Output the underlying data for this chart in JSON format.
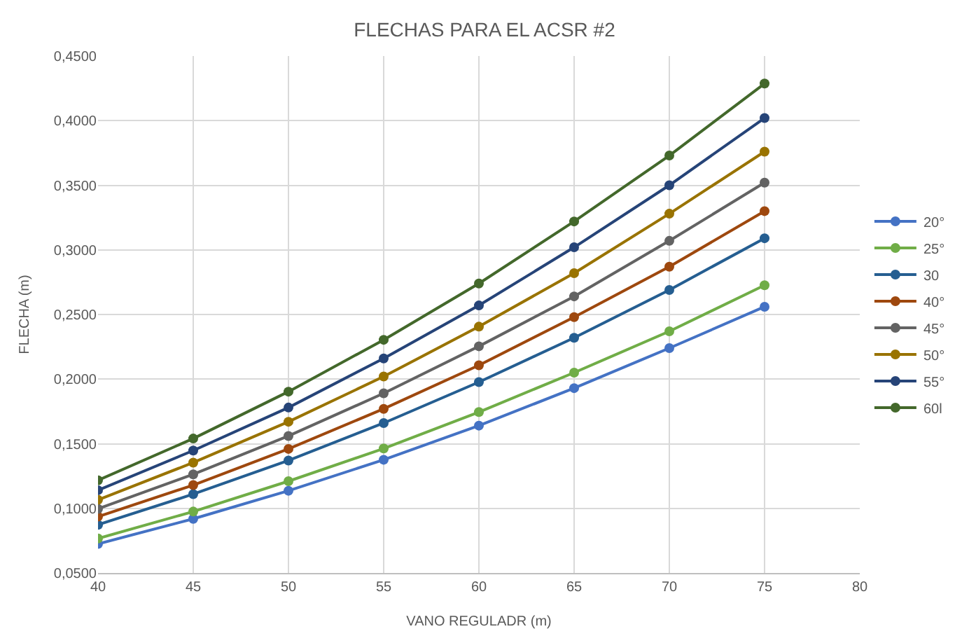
{
  "chart_data": {
    "type": "line",
    "title": "FLECHAS PARA EL ACSR #2",
    "xlabel": "VANO REGULADR (m)",
    "ylabel": "FLECHA (m)",
    "x": [
      40,
      45,
      50,
      55,
      60,
      65,
      70,
      75
    ],
    "xlim": [
      40,
      80
    ],
    "xticks": [
      40,
      45,
      50,
      55,
      60,
      65,
      70,
      75,
      80
    ],
    "ylim": [
      0.05,
      0.45
    ],
    "yticks": [
      {
        "value": 0.05,
        "label": "0,0500"
      },
      {
        "value": 0.1,
        "label": "0,1000"
      },
      {
        "value": 0.15,
        "label": "0,1500"
      },
      {
        "value": 0.2,
        "label": "0,2000"
      },
      {
        "value": 0.25,
        "label": "0,2500"
      },
      {
        "value": 0.3,
        "label": "0,3000"
      },
      {
        "value": 0.35,
        "label": "0,3500"
      },
      {
        "value": 0.4,
        "label": "0,4000"
      },
      {
        "value": 0.45,
        "label": "0,4500"
      }
    ],
    "grid": true,
    "legend": "right",
    "marker": "circle",
    "line_style": "solid",
    "series": [
      {
        "name": "20°",
        "color": "#4472c4",
        "values": [
          0.0725,
          0.0919,
          0.1136,
          0.1376,
          0.164,
          0.193,
          0.224,
          0.256
        ]
      },
      {
        "name": "25°",
        "color": "#70ad47",
        "values": [
          0.0767,
          0.0975,
          0.121,
          0.1463,
          0.1745,
          0.205,
          0.237,
          0.2726
        ]
      },
      {
        "name": "30",
        "color": "#255e91",
        "values": [
          0.0873,
          0.111,
          0.137,
          0.166,
          0.1977,
          0.232,
          0.269,
          0.309
        ]
      },
      {
        "name": "40°",
        "color": "#9e480e",
        "values": [
          0.0936,
          0.118,
          0.146,
          0.177,
          0.2107,
          0.248,
          0.287,
          0.33
        ]
      },
      {
        "name": "45°",
        "color": "#636363",
        "values": [
          0.0996,
          0.1263,
          0.156,
          0.189,
          0.2254,
          0.264,
          0.307,
          0.352
        ]
      },
      {
        "name": "50°",
        "color": "#997300",
        "values": [
          0.1066,
          0.1354,
          0.167,
          0.202,
          0.2406,
          0.282,
          0.328,
          0.376
        ]
      },
      {
        "name": "55°",
        "color": "#264478",
        "values": [
          0.114,
          0.1447,
          0.178,
          0.216,
          0.257,
          0.302,
          0.35,
          0.402
        ]
      },
      {
        "name": "60l",
        "color": "#43682b",
        "values": [
          0.1217,
          0.154,
          0.1903,
          0.2304,
          0.274,
          0.322,
          0.373,
          0.4287
        ]
      }
    ]
  }
}
